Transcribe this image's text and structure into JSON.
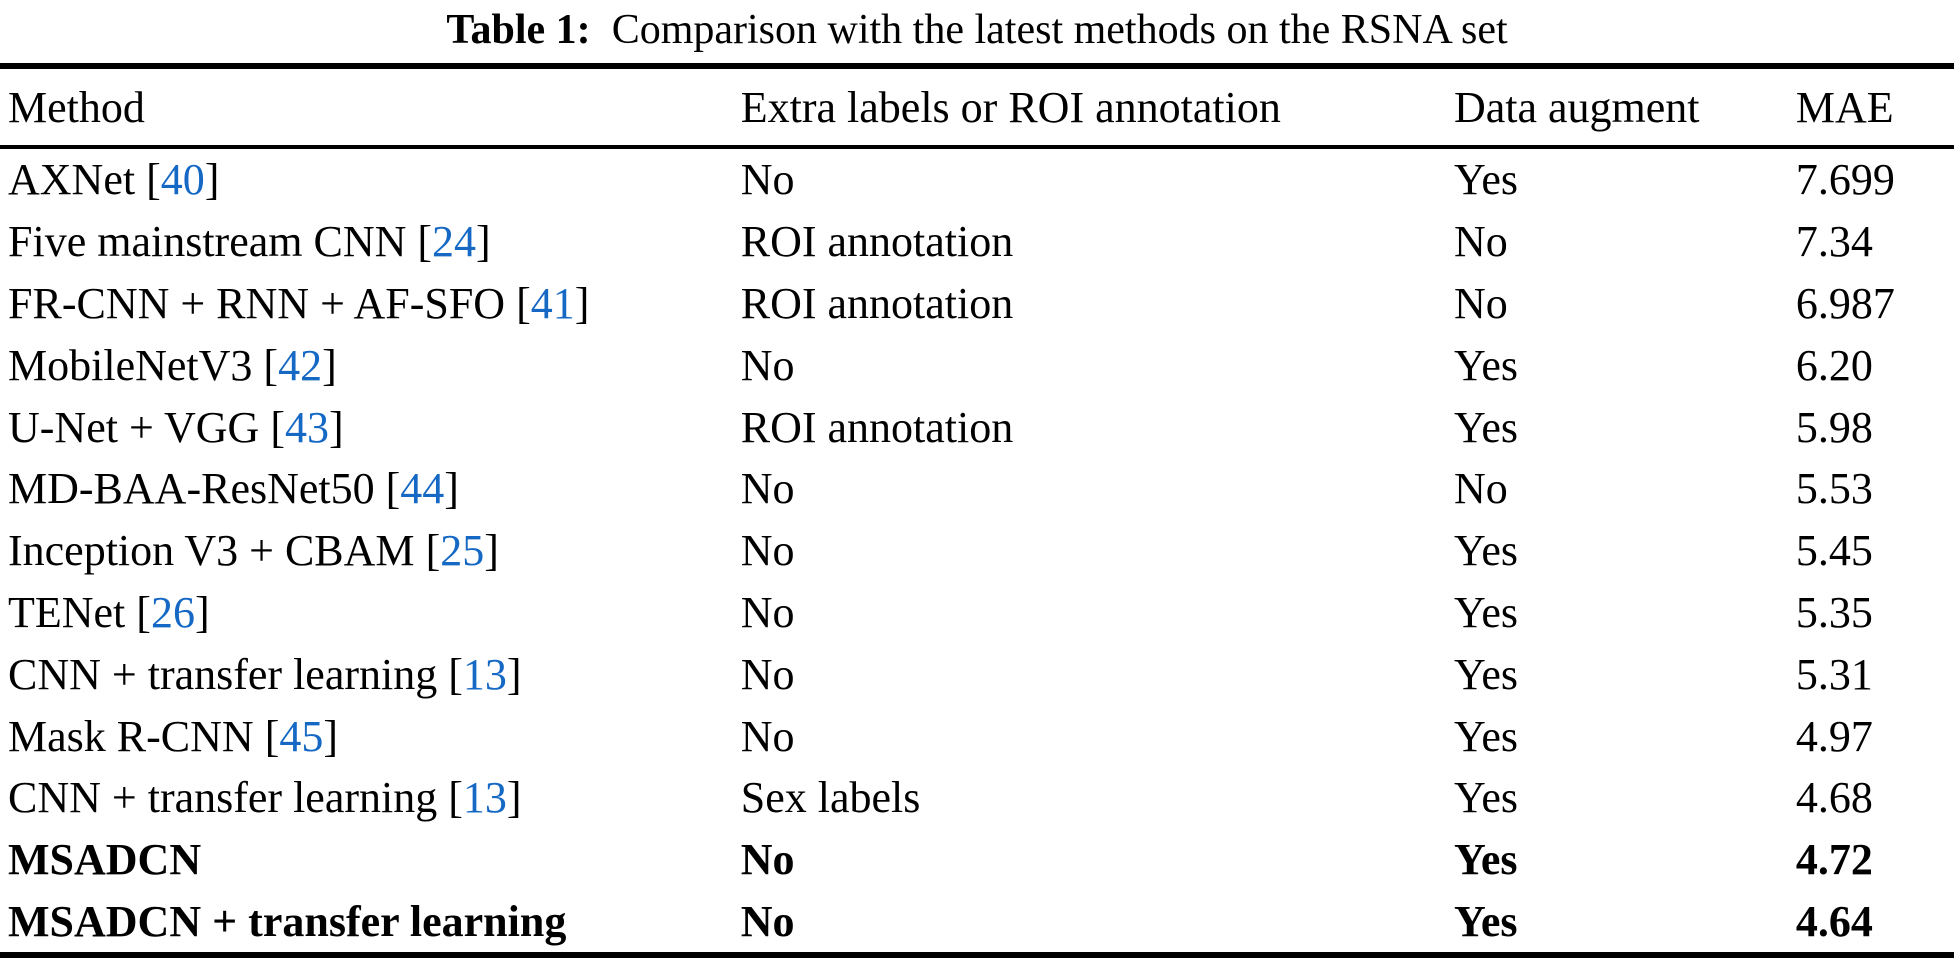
{
  "caption": {
    "label": "Table 1:",
    "text": "Comparison with the latest methods on the RSNA set"
  },
  "colors": {
    "citation_blue": "#1568C4",
    "text": "#000000",
    "background": "#ffffff"
  },
  "table": {
    "columns": [
      "Method",
      "Extra labels or ROI annotation",
      "Data augment",
      "MAE"
    ],
    "rows": [
      {
        "method": "AXNet",
        "ref": "40",
        "extra": "No",
        "augment": "Yes",
        "mae": "7.699",
        "bold": false
      },
      {
        "method": "Five mainstream CNN",
        "ref": "24",
        "extra": "ROI annotation",
        "augment": "No",
        "mae": "7.34",
        "bold": false
      },
      {
        "method": "FR-CNN + RNN + AF-SFO",
        "ref": "41",
        "extra": "ROI annotation",
        "augment": "No",
        "mae": "6.987",
        "bold": false
      },
      {
        "method": "MobileNetV3",
        "ref": "42",
        "extra": "No",
        "augment": "Yes",
        "mae": "6.20",
        "bold": false
      },
      {
        "method": "U-Net + VGG",
        "ref": "43",
        "extra": "ROI annotation",
        "augment": "Yes",
        "mae": "5.98",
        "bold": false
      },
      {
        "method": "MD-BAA-ResNet50",
        "ref": "44",
        "extra": "No",
        "augment": "No",
        "mae": "5.53",
        "bold": false
      },
      {
        "method": "Inception V3 + CBAM",
        "ref": "25",
        "extra": "No",
        "augment": "Yes",
        "mae": "5.45",
        "bold": false
      },
      {
        "method": "TENet",
        "ref": "26",
        "extra": "No",
        "augment": "Yes",
        "mae": "5.35",
        "bold": false
      },
      {
        "method": "CNN + transfer learning",
        "ref": "13",
        "extra": "No",
        "augment": "Yes",
        "mae": "5.31",
        "bold": false
      },
      {
        "method": "Mask R-CNN",
        "ref": "45",
        "extra": "No",
        "augment": "Yes",
        "mae": "4.97",
        "bold": false
      },
      {
        "method": "CNN + transfer learning",
        "ref": "13",
        "extra": "Sex labels",
        "augment": "Yes",
        "mae": "4.68",
        "bold": false
      },
      {
        "method": "MSADCN",
        "ref": "",
        "extra": "No",
        "augment": "Yes",
        "mae": "4.72",
        "bold": true
      },
      {
        "method": "MSADCN + transfer learning",
        "ref": "",
        "extra": "No",
        "augment": "Yes",
        "mae": "4.64",
        "bold": true
      }
    ]
  }
}
